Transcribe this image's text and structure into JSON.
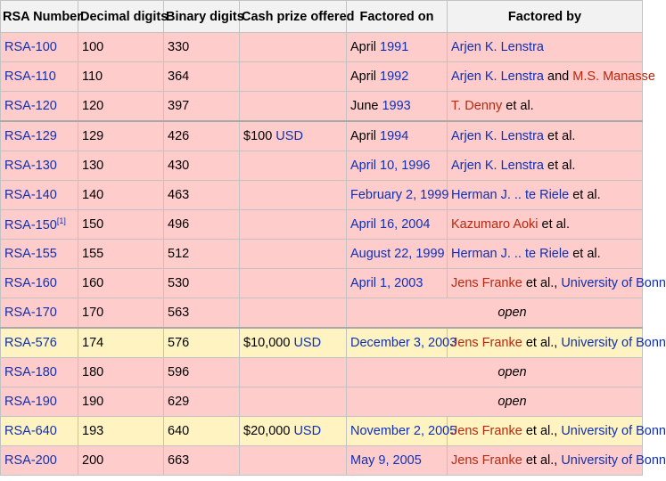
{
  "headers": [
    "RSA Number",
    "Decimal digits",
    "Binary digits",
    "Cash prize offered",
    "Factored on",
    "Factored by"
  ],
  "rows": [
    {
      "number": "RSA-100",
      "dec": "100",
      "bin": "330",
      "prize": "",
      "on_pre": "April ",
      "on_link": "1991",
      "by": [
        {
          "t": "Arjen K. Lenstra",
          "c": "lk"
        }
      ],
      "open": false,
      "highlight": false,
      "sep": false
    },
    {
      "number": "RSA-110",
      "dec": "110",
      "bin": "364",
      "prize": "",
      "on_pre": "April ",
      "on_link": "1992",
      "by": [
        {
          "t": "Arjen K. Lenstra",
          "c": "lk"
        },
        {
          "t": " and ",
          "c": ""
        },
        {
          "t": "M.S. Manasse",
          "c": "rd"
        }
      ],
      "open": false,
      "highlight": false,
      "sep": false
    },
    {
      "number": "RSA-120",
      "dec": "120",
      "bin": "397",
      "prize": "",
      "on_pre": "June ",
      "on_link": "1993",
      "by": [
        {
          "t": "T. Denny",
          "c": "rd"
        },
        {
          "t": " et al.",
          "c": ""
        }
      ],
      "open": false,
      "highlight": false,
      "sep": false
    },
    {
      "number": "RSA-129",
      "dec": "129",
      "bin": "426",
      "prize_pre": "$100 ",
      "prize_link": "USD",
      "on_pre": "April ",
      "on_link": "1994",
      "by": [
        {
          "t": "Arjen K. Lenstra",
          "c": "lk"
        },
        {
          "t": " et al.",
          "c": ""
        }
      ],
      "open": false,
      "highlight": false,
      "sep": true
    },
    {
      "number": "RSA-130",
      "dec": "130",
      "bin": "430",
      "prize": "",
      "on_pre": "",
      "on_link": "April 10, 1996",
      "by": [
        {
          "t": "Arjen K. Lenstra",
          "c": "lk"
        },
        {
          "t": " et al.",
          "c": ""
        }
      ],
      "open": false,
      "highlight": false,
      "sep": false
    },
    {
      "number": "RSA-140",
      "dec": "140",
      "bin": "463",
      "prize": "",
      "on_pre": "",
      "on_link": "February 2, 1999",
      "by": [
        {
          "t": "Herman J. .. te Riele",
          "c": "lk"
        },
        {
          "t": " et al.",
          "c": ""
        }
      ],
      "open": false,
      "highlight": false,
      "sep": false
    },
    {
      "number": "RSA-150",
      "sup": "[1]",
      "dec": "150",
      "bin": "496",
      "prize": "",
      "on_pre": "",
      "on_link": "April 16, 2004",
      "by": [
        {
          "t": "Kazumaro Aoki",
          "c": "rd"
        },
        {
          "t": " et al.",
          "c": ""
        }
      ],
      "open": false,
      "highlight": false,
      "sep": false
    },
    {
      "number": "RSA-155",
      "dec": "155",
      "bin": "512",
      "prize": "",
      "on_pre": "",
      "on_link": "August 22, 1999",
      "by": [
        {
          "t": "Herman J. .. te Riele",
          "c": "lk"
        },
        {
          "t": " et al.",
          "c": ""
        }
      ],
      "open": false,
      "highlight": false,
      "sep": false
    },
    {
      "number": "RSA-160",
      "dec": "160",
      "bin": "530",
      "prize": "",
      "on_pre": "",
      "on_link": "April 1, 2003",
      "by": [
        {
          "t": "Jens Franke",
          "c": "rd"
        },
        {
          "t": " et al., ",
          "c": ""
        },
        {
          "t": "University of Bonn",
          "c": "lk"
        }
      ],
      "open": false,
      "highlight": false,
      "sep": false
    },
    {
      "number": "RSA-170",
      "dec": "170",
      "bin": "563",
      "prize": "",
      "open": true,
      "open_text": "open",
      "highlight": false,
      "sep": false
    },
    {
      "number": "RSA-576",
      "dec": "174",
      "bin": "576",
      "prize_pre": "$10,000 ",
      "prize_link": "USD",
      "on_pre": "",
      "on_link": "December 3, 2003",
      "by": [
        {
          "t": "Jens Franke",
          "c": "rd"
        },
        {
          "t": " et al., ",
          "c": ""
        },
        {
          "t": "University of Bonn",
          "c": "lk"
        }
      ],
      "open": false,
      "highlight": true,
      "sep": true
    },
    {
      "number": "RSA-180",
      "dec": "180",
      "bin": "596",
      "prize": "",
      "open": true,
      "open_text": "open",
      "highlight": false,
      "sep": false
    },
    {
      "number": "RSA-190",
      "dec": "190",
      "bin": "629",
      "prize": "",
      "open": true,
      "open_text": "open",
      "highlight": false,
      "sep": false
    },
    {
      "number": "RSA-640",
      "dec": "193",
      "bin": "640",
      "prize_pre": "$20,000 ",
      "prize_link": "USD",
      "on_pre": "",
      "on_link": "November 2, 2005",
      "by": [
        {
          "t": "Jens Franke",
          "c": "rd"
        },
        {
          "t": " et al., ",
          "c": ""
        },
        {
          "t": "University of Bonn",
          "c": "lk"
        }
      ],
      "open": false,
      "highlight": true,
      "sep": false
    },
    {
      "number": "RSA-200",
      "dec": "200",
      "bin": "663",
      "prize": "",
      "on_pre": "",
      "on_link": "May 9, 2005",
      "by": [
        {
          "t": "Jens Franke",
          "c": "rd"
        },
        {
          "t": " et al., ",
          "c": ""
        },
        {
          "t": "University of Bonn",
          "c": "lk"
        }
      ],
      "open": false,
      "highlight": false,
      "sep": false
    }
  ]
}
